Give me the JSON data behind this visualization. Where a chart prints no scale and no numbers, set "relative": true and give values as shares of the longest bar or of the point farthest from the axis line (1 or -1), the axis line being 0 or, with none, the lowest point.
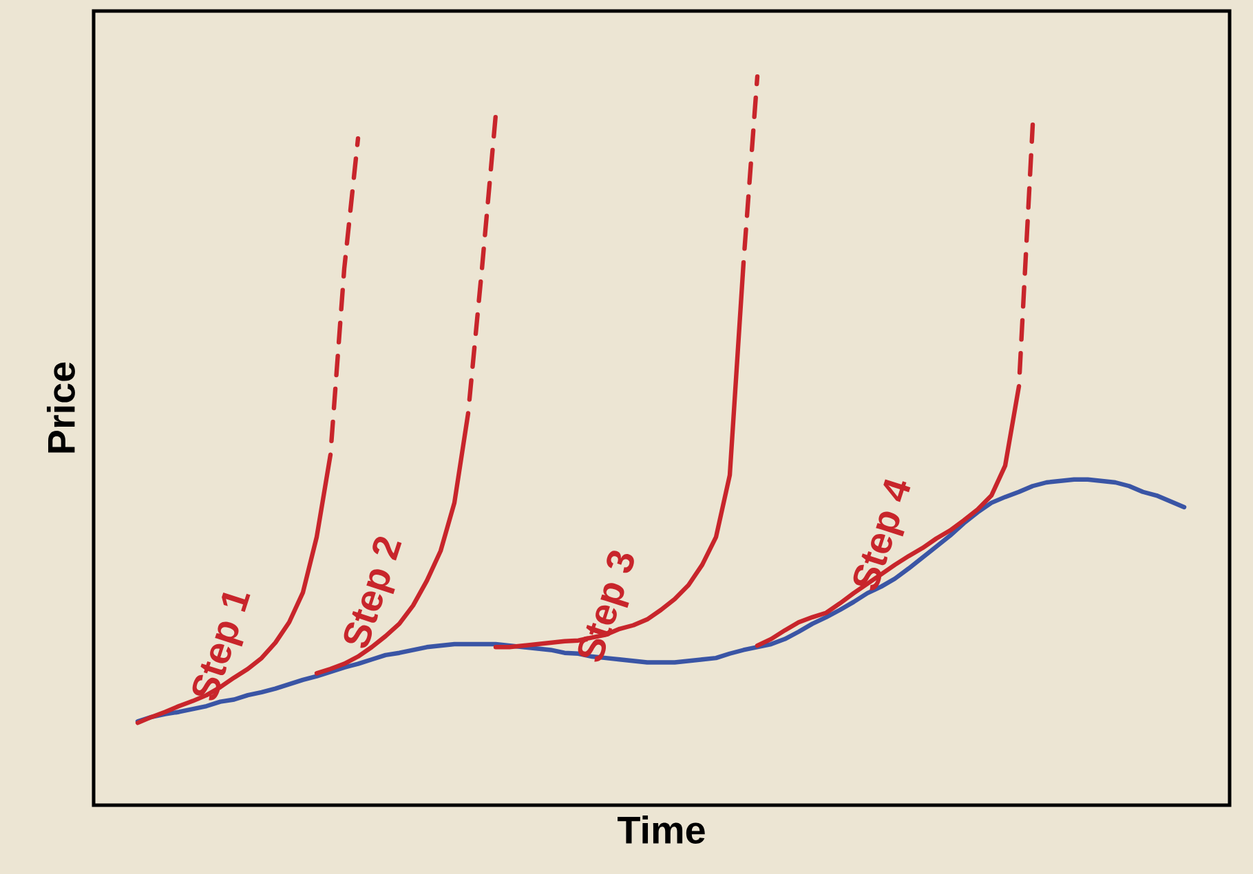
{
  "chart_data": {
    "type": "line",
    "relative": true,
    "xlabel": "Time",
    "ylabel": "Price",
    "categories": [
      null,
      null,
      null,
      null,
      null,
      null,
      null,
      null,
      null,
      null,
      null,
      null,
      null,
      null,
      null,
      null,
      null,
      null,
      null,
      null,
      null,
      null,
      null,
      null,
      null,
      null,
      null,
      null,
      null,
      null,
      null,
      null,
      null,
      null,
      null,
      null,
      null,
      null,
      null,
      null,
      null,
      null,
      null,
      null,
      null,
      null,
      null,
      null,
      null,
      null,
      null,
      null,
      null,
      null,
      null,
      null,
      null,
      null,
      null,
      null,
      null,
      null,
      null,
      null,
      null,
      null,
      null,
      null,
      null,
      null,
      null,
      null,
      null,
      null,
      null,
      null,
      null
    ],
    "series": [
      {
        "color": "#3a55a5",
        "line_style": "solid",
        "values": [
          0.115,
          0.121,
          0.125,
          0.128,
          0.132,
          0.136,
          0.142,
          0.145,
          0.151,
          0.155,
          0.16,
          0.166,
          0.172,
          0.177,
          0.183,
          0.189,
          0.194,
          0.2,
          0.206,
          0.209,
          0.213,
          0.217,
          0.219,
          0.221,
          0.221,
          0.221,
          0.221,
          0.219,
          0.217,
          0.215,
          0.213,
          0.209,
          0.208,
          0.204,
          0.202,
          0.2,
          0.198,
          0.196,
          0.196,
          0.196,
          0.198,
          0.2,
          0.202,
          0.208,
          0.213,
          0.217,
          0.221,
          0.228,
          0.238,
          0.249,
          0.258,
          0.268,
          0.279,
          0.291,
          0.3,
          0.311,
          0.325,
          0.34,
          0.355,
          0.37,
          0.387,
          0.402,
          0.415,
          0.423,
          0.43,
          0.438,
          0.443,
          0.445,
          0.447,
          0.447,
          0.445,
          0.443,
          0.438,
          0.43,
          0.425,
          0.417,
          0.409
        ]
      },
      {
        "name": "Step 1",
        "color": "#c8252b",
        "line_style": "solid",
        "values": [
          0.113,
          0.121,
          0.128,
          0.136,
          0.143,
          0.151,
          0.162,
          0.175,
          0.187,
          0.202,
          0.223,
          0.251,
          0.292,
          0.368,
          0.481,
          null,
          null,
          null,
          null,
          null,
          null,
          null,
          null,
          null,
          null,
          null,
          null,
          null,
          null,
          null,
          null,
          null,
          null,
          null,
          null,
          null,
          null,
          null,
          null,
          null,
          null,
          null,
          null,
          null,
          null,
          null,
          null,
          null,
          null,
          null,
          null,
          null,
          null,
          null,
          null,
          null,
          null,
          null,
          null,
          null,
          null,
          null,
          null,
          null,
          null,
          null,
          null,
          null,
          null,
          null,
          null,
          null,
          null,
          null,
          null,
          null,
          null
        ]
      },
      {
        "color": "#c8252b",
        "line_style": "dashed",
        "values": [
          null,
          null,
          null,
          null,
          null,
          null,
          null,
          null,
          null,
          null,
          null,
          null,
          null,
          null,
          0.481,
          0.736,
          0.915,
          null,
          null,
          null,
          null,
          null,
          null,
          null,
          null,
          null,
          null,
          null,
          null,
          null,
          null,
          null,
          null,
          null,
          null,
          null,
          null,
          null,
          null,
          null,
          null,
          null,
          null,
          null,
          null,
          null,
          null,
          null,
          null,
          null,
          null,
          null,
          null,
          null,
          null,
          null,
          null,
          null,
          null,
          null,
          null,
          null,
          null,
          null,
          null,
          null,
          null,
          null,
          null,
          null,
          null,
          null,
          null,
          null,
          null,
          null,
          null
        ]
      },
      {
        "name": "Step 2",
        "color": "#c8252b",
        "line_style": "solid",
        "values": [
          null,
          null,
          null,
          null,
          null,
          null,
          null,
          null,
          null,
          null,
          null,
          null,
          null,
          0.181,
          0.187,
          0.194,
          0.204,
          0.217,
          0.232,
          0.249,
          0.274,
          0.308,
          0.349,
          0.415,
          0.538,
          null,
          null,
          null,
          null,
          null,
          null,
          null,
          null,
          null,
          null,
          null,
          null,
          null,
          null,
          null,
          null,
          null,
          null,
          null,
          null,
          null,
          null,
          null,
          null,
          null,
          null,
          null,
          null,
          null,
          null,
          null,
          null,
          null,
          null,
          null,
          null,
          null,
          null,
          null,
          null,
          null,
          null,
          null,
          null,
          null,
          null,
          null,
          null,
          null,
          null,
          null,
          null
        ]
      },
      {
        "color": "#c8252b",
        "line_style": "dashed",
        "values": [
          null,
          null,
          null,
          null,
          null,
          null,
          null,
          null,
          null,
          null,
          null,
          null,
          null,
          null,
          null,
          null,
          null,
          null,
          null,
          null,
          null,
          null,
          null,
          null,
          0.538,
          0.736,
          0.947,
          null,
          null,
          null,
          null,
          null,
          null,
          null,
          null,
          null,
          null,
          null,
          null,
          null,
          null,
          null,
          null,
          null,
          null,
          null,
          null,
          null,
          null,
          null,
          null,
          null,
          null,
          null,
          null,
          null,
          null,
          null,
          null,
          null,
          null,
          null,
          null,
          null,
          null,
          null,
          null,
          null,
          null,
          null,
          null,
          null,
          null,
          null,
          null,
          null,
          null
        ]
      },
      {
        "name": "Step 3",
        "color": "#c8252b",
        "line_style": "solid",
        "values": [
          null,
          null,
          null,
          null,
          null,
          null,
          null,
          null,
          null,
          null,
          null,
          null,
          null,
          null,
          null,
          null,
          null,
          null,
          null,
          null,
          null,
          null,
          null,
          null,
          null,
          null,
          0.217,
          0.217,
          0.219,
          0.221,
          0.223,
          0.225,
          0.226,
          0.23,
          0.234,
          0.242,
          0.247,
          0.255,
          0.268,
          0.283,
          0.302,
          0.33,
          0.368,
          0.453,
          0.745,
          null,
          null,
          null,
          null,
          null,
          null,
          null,
          null,
          null,
          null,
          null,
          null,
          null,
          null,
          null,
          null,
          null,
          null,
          null,
          null,
          null,
          null,
          null,
          null,
          null,
          null,
          null,
          null,
          null,
          null,
          null,
          null
        ]
      },
      {
        "color": "#c8252b",
        "line_style": "dashed",
        "values": [
          null,
          null,
          null,
          null,
          null,
          null,
          null,
          null,
          null,
          null,
          null,
          null,
          null,
          null,
          null,
          null,
          null,
          null,
          null,
          null,
          null,
          null,
          null,
          null,
          null,
          null,
          null,
          null,
          null,
          null,
          null,
          null,
          null,
          null,
          null,
          null,
          null,
          null,
          null,
          null,
          null,
          null,
          null,
          null,
          0.745,
          1.0,
          null,
          null,
          null,
          null,
          null,
          null,
          null,
          null,
          null,
          null,
          null,
          null,
          null,
          null,
          null,
          null,
          null,
          null,
          null,
          null,
          null,
          null,
          null,
          null,
          null,
          null,
          null,
          null,
          null,
          null,
          null
        ]
      },
      {
        "name": "Step 4",
        "color": "#c8252b",
        "line_style": "solid",
        "values": [
          null,
          null,
          null,
          null,
          null,
          null,
          null,
          null,
          null,
          null,
          null,
          null,
          null,
          null,
          null,
          null,
          null,
          null,
          null,
          null,
          null,
          null,
          null,
          null,
          null,
          null,
          null,
          null,
          null,
          null,
          null,
          null,
          null,
          null,
          null,
          null,
          null,
          null,
          null,
          null,
          null,
          null,
          null,
          null,
          null,
          0.219,
          0.228,
          0.24,
          0.251,
          0.258,
          0.264,
          0.277,
          0.291,
          0.304,
          0.317,
          0.33,
          0.342,
          0.353,
          0.366,
          0.377,
          0.391,
          0.406,
          0.425,
          0.466,
          0.575,
          null,
          null,
          null,
          null,
          null,
          null,
          null,
          null,
          null,
          null,
          null,
          null
        ]
      },
      {
        "color": "#c8252b",
        "line_style": "dashed",
        "values": [
          null,
          null,
          null,
          null,
          null,
          null,
          null,
          null,
          null,
          null,
          null,
          null,
          null,
          null,
          null,
          null,
          null,
          null,
          null,
          null,
          null,
          null,
          null,
          null,
          null,
          null,
          null,
          null,
          null,
          null,
          null,
          null,
          null,
          null,
          null,
          null,
          null,
          null,
          null,
          null,
          null,
          null,
          null,
          null,
          null,
          null,
          null,
          null,
          null,
          null,
          null,
          null,
          null,
          null,
          null,
          null,
          null,
          null,
          null,
          null,
          null,
          null,
          null,
          null,
          0.575,
          0.934,
          null,
          null,
          null,
          null,
          null,
          null,
          null,
          null,
          null,
          null,
          null
        ]
      }
    ]
  }
}
